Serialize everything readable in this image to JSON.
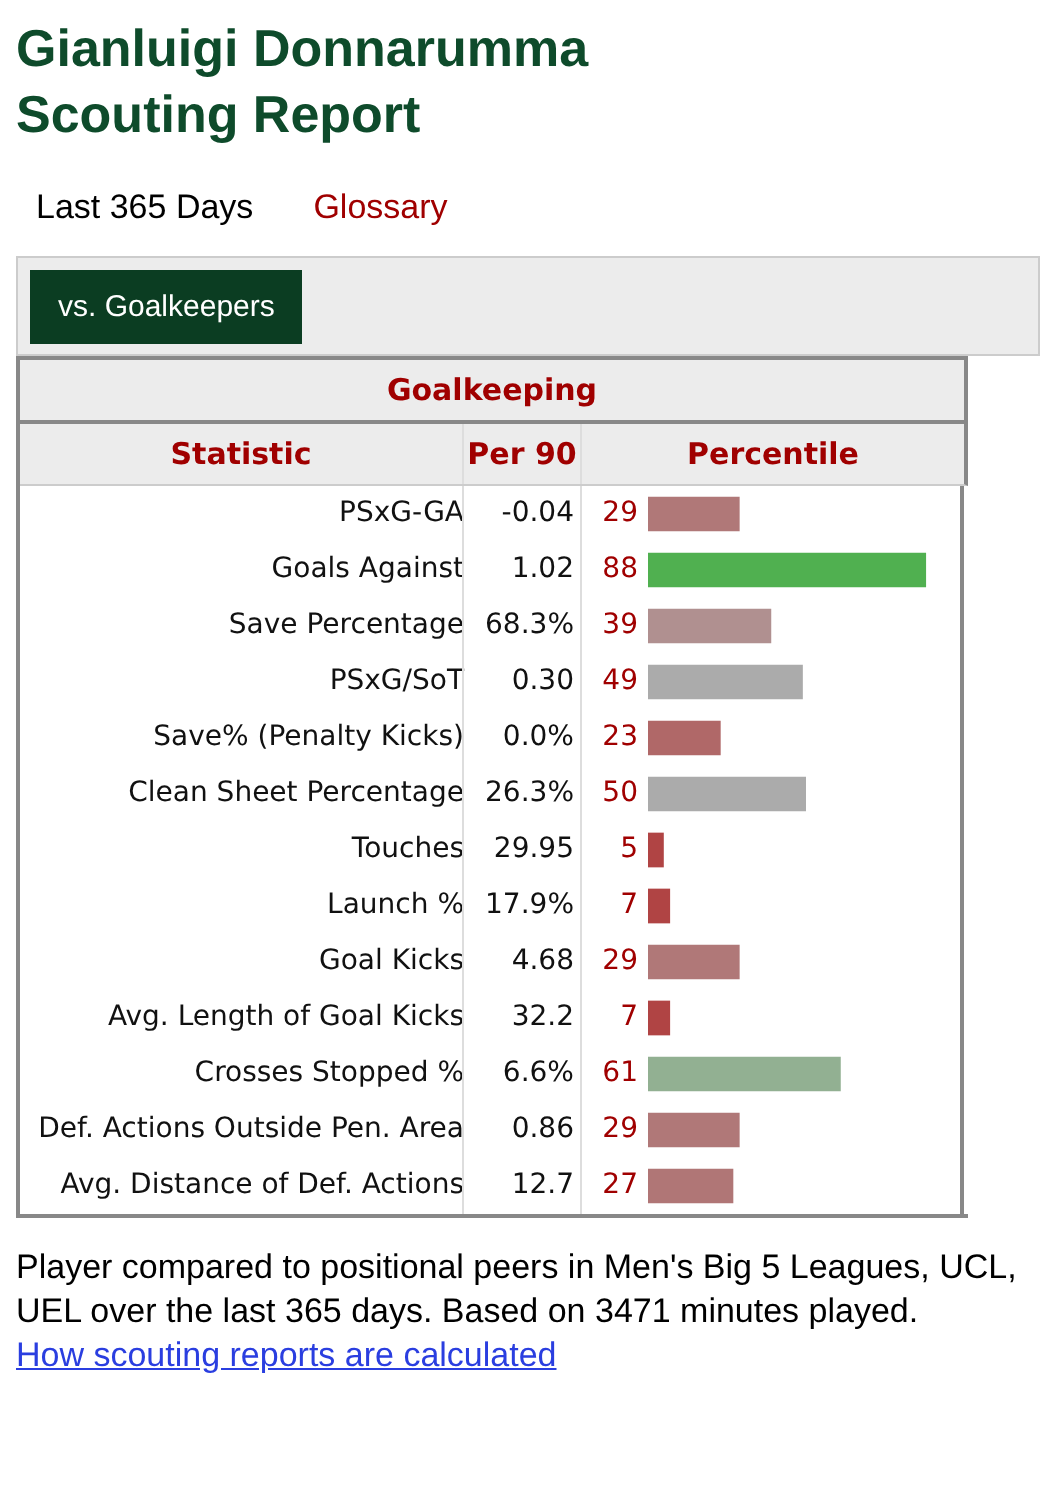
{
  "chart_data": {
    "type": "bar",
    "orientation": "horizontal",
    "title": "Gianluigi Donnarumma Scouting Report",
    "subtitle": "Goalkeeping",
    "categories": [
      "PSxG-GA",
      "Goals Against",
      "Save Percentage",
      "PSxG/SoT",
      "Save% (Penalty Kicks)",
      "Clean Sheet Percentage",
      "Touches",
      "Launch %",
      "Goal Kicks",
      "Avg. Length of Goal Kicks",
      "Crosses Stopped %",
      "Def. Actions Outside Pen. Area",
      "Avg. Distance of Def. Actions"
    ],
    "values": [
      29,
      88,
      39,
      49,
      23,
      50,
      5,
      7,
      29,
      7,
      61,
      29,
      27
    ],
    "colors": [
      "#b07878",
      "#50b050",
      "#b09090",
      "#ababab",
      "#b06868",
      "#ababab",
      "#b04444",
      "#b04444",
      "#b07878",
      "#b04444",
      "#92b092",
      "#b07878",
      "#b07676"
    ],
    "xlim": [
      0,
      100
    ],
    "tick_labels": "y",
    "data_labels": true,
    "legend": false,
    "grid": false,
    "annotations": [
      "Last 365 Days",
      "Glossary",
      "vs. Goalkeepers",
      "Statistic",
      "Per 90",
      "Percentile",
      "-0.04",
      "1.02",
      "68.3%",
      "0.30",
      "0.0%",
      "26.3%",
      "29.95",
      "17.9%",
      "4.68",
      "32.2",
      "6.6%",
      "0.86",
      "12.7",
      "Player compared to positional peers in Men's Big 5 Leagues, UCL, UEL over the last 365 days. Based on 3471 minutes played.",
      "How scouting reports are calculated"
    ]
  }
}
